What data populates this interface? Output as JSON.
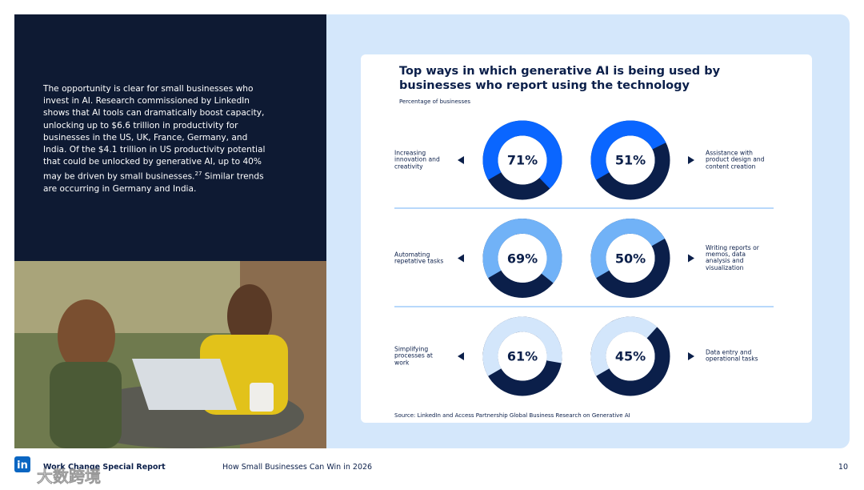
{
  "body": {
    "text_before": "The opportunity is clear for small businesses who invest in AI. Research commissioned by LinkedIn shows that AI tools can dramatically boost capacity, unlocking up to $6.6 trillion in productivity for businesses in the US, UK, France, Germany, and India. Of the $4.1 trillion in US productivity potential that could be unlocked by generative AI, up to 40% may be driven by small businesses.",
    "footnote_ref": "27",
    "text_after": " Similar trends are occurring in Germany and India."
  },
  "chart_data": {
    "type": "donut",
    "title": "Top ways in which generative AI is being used by businesses who report using the technology",
    "subtitle": "Percentage of businesses",
    "categories": [
      "Increasing innovation and creativity",
      "Assistance with product design and content creation",
      "Automating repetative tasks",
      "Writing reports or memos, data analysis and visualization",
      "Simplifying processes at work",
      "Data entry and operational tasks"
    ],
    "values": [
      71,
      51,
      69,
      50,
      61,
      45
    ],
    "value_labels": [
      "71%",
      "51%",
      "69%",
      "50%",
      "61%",
      "45%"
    ],
    "colors": [
      "#0a66ff",
      "#0a66ff",
      "#71b2f7",
      "#71b2f7",
      "#d3e6fb",
      "#d3e6fb"
    ],
    "track_color": "#0b1f4a",
    "source": "Source: LinkedIn and Access Partnership Global Business Research on Generative AI"
  },
  "footer": {
    "logo": "in",
    "report": "Work Change Special Report",
    "title": "How Small Businesses Can Win in 2026",
    "page": "10",
    "watermark": "大数跨境"
  }
}
